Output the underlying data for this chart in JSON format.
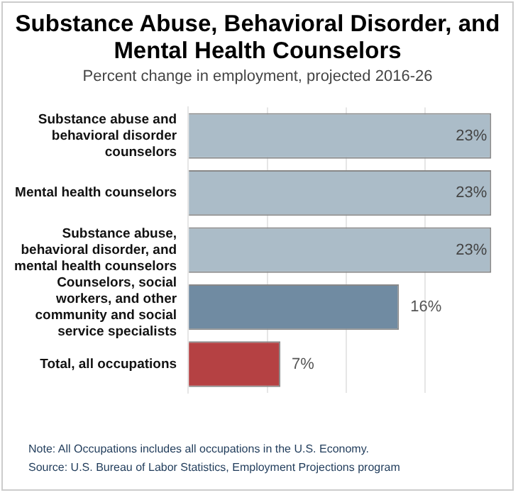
{
  "chart_data": {
    "type": "bar",
    "orientation": "horizontal",
    "title": "Substance Abuse, Behavioral Disorder, and Mental Health Counselors",
    "subtitle": "Percent change in employment, projected 2016-26",
    "categories": [
      "Substance abuse and behavioral disorder counselors",
      "Mental health counselors",
      "Substance abuse, behavioral disorder, and mental health counselors",
      "Counselors, social workers, and other community and social service specialists",
      "Total, all occupations"
    ],
    "values": [
      23,
      23,
      23,
      16,
      7
    ],
    "value_labels": [
      "23%",
      "23%",
      "23%",
      "16%",
      "7%"
    ],
    "colors": [
      "#abbcc8",
      "#abbcc8",
      "#abbcc8",
      "#708ba2",
      "#b54143"
    ],
    "xlim": [
      0,
      23.2
    ],
    "xticks": [
      {
        "value": 0,
        "label": null
      },
      {
        "value": 6,
        "label": null
      },
      {
        "value": 12,
        "label": null
      },
      {
        "value": 18,
        "label": null
      }
    ],
    "grid": "x",
    "tick_labels": "y",
    "legend": false,
    "annotations": [
      "Note: All Occupations includes all occupations in the U.S. Economy.",
      "Source: U.S. Bureau of Labor Statistics, Employment Projections program"
    ]
  }
}
